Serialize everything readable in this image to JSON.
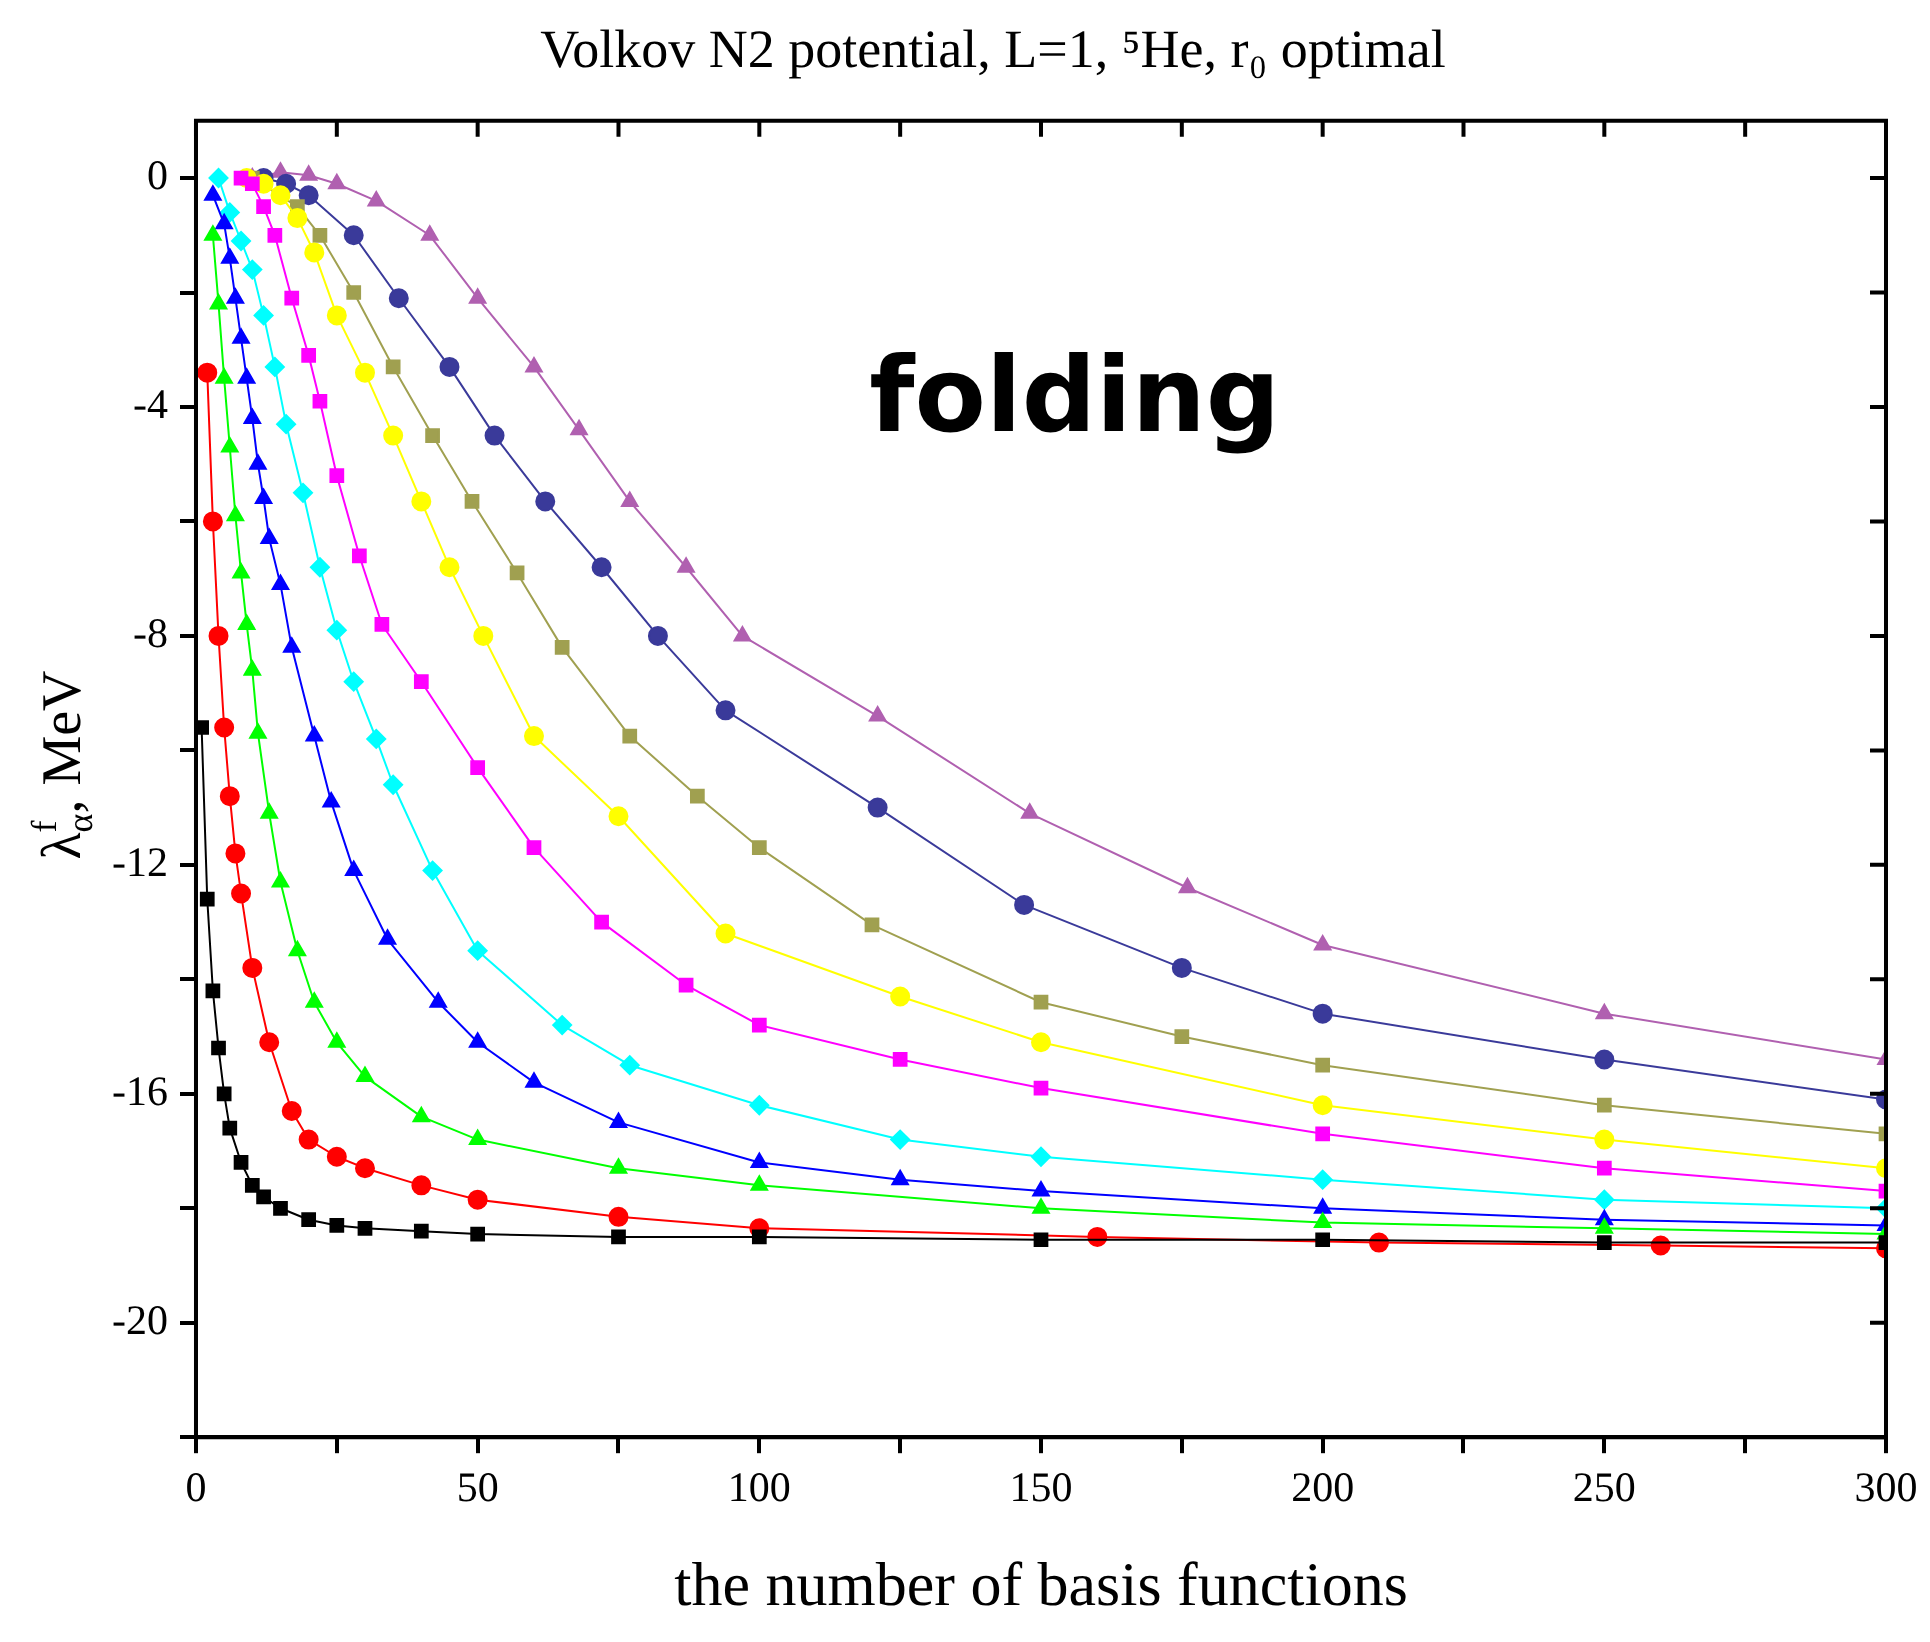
{
  "chart_data": {
    "type": "line",
    "title": "Volkov N2 potential, L=1, ⁵He, r₀ optimal",
    "xlabel": "the number of basis functions",
    "ylabel": "λ$^{f}$$_{α}$, MeV",
    "annotations": [
      "folding"
    ],
    "xlim": [
      0,
      300
    ],
    "xticks": [
      0,
      {
        "value": 25,
        "label": null
      },
      50,
      {
        "value": 75,
        "label": null
      },
      100,
      {
        "value": 125,
        "label": null
      },
      150,
      {
        "value": 175,
        "label": null
      },
      200,
      {
        "value": 225,
        "label": null
      },
      250,
      {
        "value": 275,
        "label": null
      },
      300
    ],
    "ylim": [
      -22,
      1
    ],
    "yticks": [
      {
        "value": -22,
        "label": null
      },
      -20,
      {
        "value": -18,
        "label": null
      },
      -16,
      {
        "value": -14,
        "label": null
      },
      -12,
      {
        "value": -10,
        "label": null
      },
      -8,
      {
        "value": -6,
        "label": null
      },
      -4,
      {
        "value": -2,
        "label": null
      },
      0
    ],
    "grid": false,
    "line_style": "solid",
    "series": [
      {
        "color": "#000000",
        "marker": "square",
        "x": [
          1,
          2,
          3,
          4,
          5,
          6,
          8,
          10,
          12,
          15,
          20,
          25,
          30,
          40,
          50,
          75,
          100,
          150,
          200,
          250,
          300
        ],
        "values": [
          -9.6,
          -12.6,
          -14.2,
          -15.2,
          -16.0,
          -16.6,
          -17.2,
          -17.6,
          -17.8,
          -18.0,
          -18.2,
          -18.3,
          -18.35,
          -18.4,
          -18.45,
          -18.5,
          -18.5,
          -18.55,
          -18.55,
          -18.6,
          -18.6
        ]
      },
      {
        "color": "#ff0000",
        "marker": "circle",
        "x": [
          2,
          3,
          4,
          5,
          6,
          7,
          8,
          10,
          13,
          17,
          20,
          25,
          30,
          40,
          50,
          75,
          100,
          160,
          210,
          260,
          300
        ],
        "values": [
          -3.4,
          -6.0,
          -8.0,
          -9.6,
          -10.8,
          -11.8,
          -12.5,
          -13.8,
          -15.1,
          -16.3,
          -16.8,
          -17.1,
          -17.3,
          -17.6,
          -17.85,
          -18.15,
          -18.35,
          -18.5,
          -18.6,
          -18.65,
          -18.7
        ]
      },
      {
        "color": "#00ff00",
        "marker": "triangle",
        "x": [
          3,
          4,
          5,
          6,
          7,
          8,
          9,
          10,
          11,
          13,
          15,
          18,
          21,
          25,
          30,
          40,
          50,
          75,
          100,
          150,
          200,
          250,
          300
        ],
        "values": [
          -1.0,
          -2.2,
          -3.5,
          -4.7,
          -5.9,
          -6.9,
          -7.8,
          -8.6,
          -9.7,
          -11.1,
          -12.3,
          -13.5,
          -14.4,
          -15.1,
          -15.7,
          -16.4,
          -16.8,
          -17.3,
          -17.6,
          -18.0,
          -18.25,
          -18.35,
          -18.45
        ]
      },
      {
        "color": "#0000ff",
        "marker": "triangle",
        "x": [
          3,
          5,
          6,
          7,
          8,
          9,
          10,
          11,
          12,
          13,
          15,
          17,
          21,
          24,
          28,
          34,
          43,
          50,
          60,
          75,
          100,
          125,
          150,
          200,
          250,
          300
        ],
        "values": [
          -0.3,
          -0.8,
          -1.4,
          -2.1,
          -2.8,
          -3.5,
          -4.2,
          -5.0,
          -5.6,
          -6.3,
          -7.1,
          -8.2,
          -9.75,
          -10.9,
          -12.1,
          -13.3,
          -14.4,
          -15.1,
          -15.8,
          -16.5,
          -17.2,
          -17.5,
          -17.7,
          -18.0,
          -18.2,
          -18.3
        ]
      },
      {
        "color": "#00ffff",
        "marker": "diamond",
        "x": [
          4,
          6,
          8,
          10,
          12,
          14,
          16,
          19,
          22,
          25,
          28,
          32,
          35,
          42,
          50,
          65,
          77,
          100,
          125,
          150,
          200,
          250,
          300
        ],
        "values": [
          0,
          -0.6,
          -1.1,
          -1.6,
          -2.4,
          -3.3,
          -4.3,
          -5.5,
          -6.8,
          -7.9,
          -8.8,
          -9.8,
          -10.6,
          -12.1,
          -13.5,
          -14.8,
          -15.5,
          -16.2,
          -16.8,
          -17.1,
          -17.5,
          -17.85,
          -18.0
        ]
      },
      {
        "color": "#ff00ff",
        "marker": "square",
        "x": [
          8,
          10,
          12,
          14,
          17,
          20,
          22,
          25,
          29,
          33,
          40,
          50,
          60,
          72,
          87,
          100,
          125,
          150,
          200,
          250,
          300
        ],
        "values": [
          0,
          -0.1,
          -0.5,
          -1.0,
          -2.1,
          -3.1,
          -3.9,
          -5.2,
          -6.6,
          -7.8,
          -8.8,
          -10.3,
          -11.7,
          -13.0,
          -14.1,
          -14.8,
          -15.4,
          -15.9,
          -16.7,
          -17.3,
          -17.7
        ]
      },
      {
        "color": "#ffff00",
        "marker": "circle",
        "x": [
          9,
          12,
          15,
          18,
          21,
          25,
          30,
          35,
          40,
          45,
          51,
          60,
          75,
          94,
          125,
          150,
          200,
          250,
          300
        ],
        "values": [
          0,
          -0.1,
          -0.3,
          -0.7,
          -1.3,
          -2.4,
          -3.4,
          -4.5,
          -5.65,
          -6.8,
          -8.0,
          -9.75,
          -11.15,
          -13.2,
          -14.3,
          -15.1,
          -16.2,
          -16.8,
          -17.3
        ]
      },
      {
        "color": "#a0a050",
        "marker": "square",
        "x": [
          10,
          18,
          22,
          28,
          35,
          42,
          49,
          57,
          65,
          77,
          89,
          100,
          120,
          150,
          175,
          200,
          250,
          300
        ],
        "values": [
          0,
          -0.5,
          -1.0,
          -2.0,
          -3.3,
          -4.5,
          -5.65,
          -6.9,
          -8.2,
          -9.75,
          -10.8,
          -11.7,
          -13.05,
          -14.4,
          -15.0,
          -15.5,
          -16.2,
          -16.7
        ]
      },
      {
        "color": "#3a3a9a",
        "marker": "circle",
        "x": [
          12,
          16,
          20,
          28,
          36,
          45,
          53,
          62,
          72,
          82,
          94,
          121,
          147,
          175,
          200,
          250,
          300
        ],
        "values": [
          0,
          -0.1,
          -0.3,
          -1.0,
          -2.1,
          -3.3,
          -4.5,
          -5.65,
          -6.8,
          -8.0,
          -9.3,
          -11.0,
          -12.7,
          -13.8,
          -14.6,
          -15.4,
          -16.1
        ]
      },
      {
        "color": "#b060b0",
        "marker": "triangle",
        "x": [
          10,
          15,
          20,
          25,
          32,
          41.5,
          50,
          60,
          68,
          77,
          87,
          97,
          121,
          148,
          176,
          200,
          250,
          300
        ],
        "values": [
          0,
          0.1,
          0.05,
          -0.1,
          -0.4,
          -1.0,
          -2.1,
          -3.3,
          -4.4,
          -5.65,
          -6.8,
          -8.0,
          -9.4,
          -11.1,
          -12.4,
          -13.4,
          -14.6,
          -15.4
        ]
      }
    ]
  }
}
